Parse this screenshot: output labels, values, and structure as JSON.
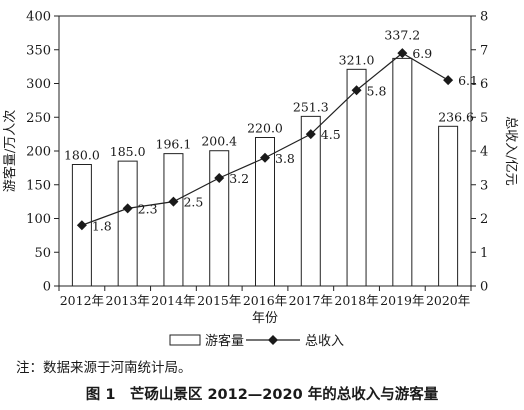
{
  "chart_data": {
    "type": "bar+line",
    "categories": [
      "2012年",
      "2013年",
      "2014年",
      "2015年",
      "2016年",
      "2017年",
      "2018年",
      "2019年",
      "2020年"
    ],
    "series": [
      {
        "name": "游客量",
        "type": "bar",
        "axis": "left",
        "values": [
          180.0,
          185.0,
          196.1,
          200.4,
          220.0,
          251.3,
          321.0,
          337.2,
          236.6
        ],
        "labels": [
          "180.0",
          "185.0",
          "196.1",
          "200.4",
          "220.0",
          "251.3",
          "321.0",
          "337.2",
          "236.6"
        ]
      },
      {
        "name": "总收入",
        "type": "line",
        "axis": "right",
        "marker": "diamond",
        "values": [
          1.8,
          2.3,
          2.5,
          3.2,
          3.8,
          4.5,
          5.8,
          6.9,
          6.1
        ],
        "labels": [
          "1.8",
          "2.3",
          "2.5",
          "3.2",
          "3.8",
          "4.5",
          "5.8",
          "6.9",
          "6.1"
        ]
      }
    ],
    "xlabel": "年份",
    "ylabel_left": "游客量/万人次",
    "ylabel_right": "总收入/亿元",
    "ylim_left": [
      0,
      400
    ],
    "ylim_right": [
      0,
      8
    ],
    "yticks_left": [
      "0",
      "50",
      "100",
      "150",
      "200",
      "250",
      "300",
      "350",
      "400"
    ],
    "yticks_right": [
      "0",
      "1",
      "2",
      "3",
      "4",
      "5",
      "6",
      "7",
      "8"
    ],
    "grid": false,
    "legend": {
      "position": "bottom",
      "items": [
        "游客量",
        "总收入"
      ]
    },
    "note": "注：数据来源于河南统计局。",
    "caption": "图 1　芒砀山景区 2012—2020 年的总收入与游客量"
  }
}
